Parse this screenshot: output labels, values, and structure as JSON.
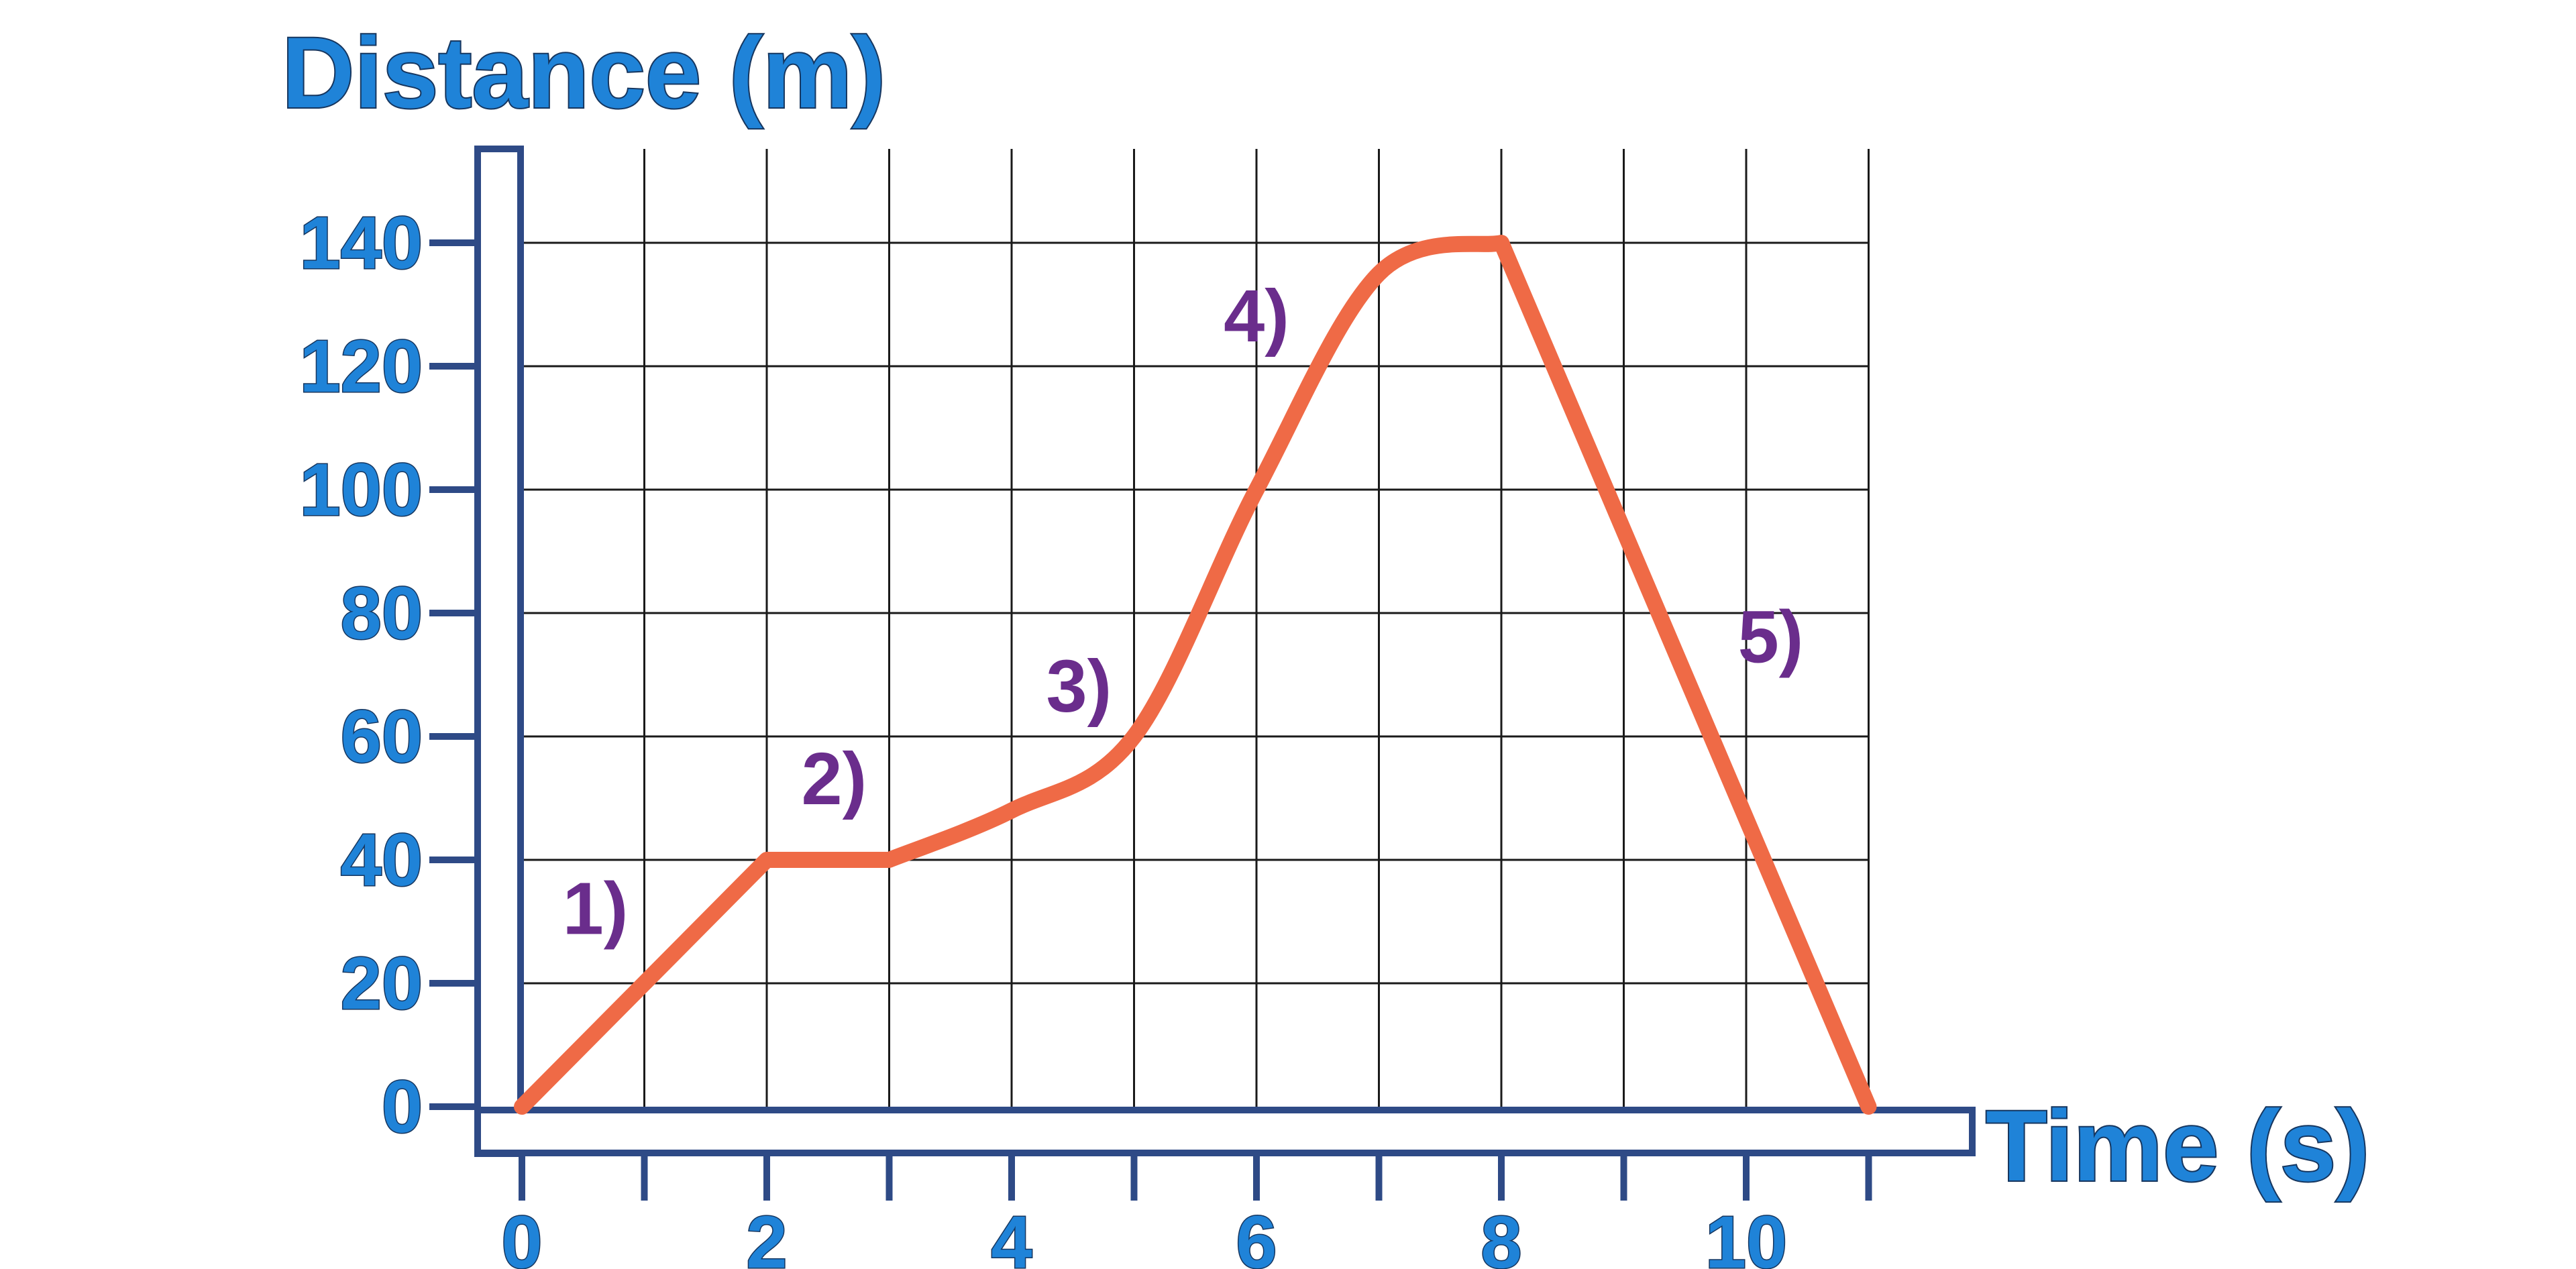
{
  "chart_data": {
    "type": "line",
    "title": "",
    "xlabel": "Time (s)",
    "ylabel": "Distance (m)",
    "xlim": [
      0,
      11
    ],
    "ylim": [
      0,
      150
    ],
    "grid": true,
    "legend": "none",
    "x_ticks": [
      "0",
      "2",
      "4",
      "6",
      "8",
      "10"
    ],
    "y_ticks": [
      "0",
      "20",
      "40",
      "60",
      "80",
      "100",
      "120",
      "140"
    ],
    "series": [
      {
        "color": "#ef6a46",
        "x": [
          0,
          2,
          3,
          4,
          5,
          6,
          7,
          8,
          11
        ],
        "y": [
          0,
          40,
          40,
          48,
          60,
          100,
          135,
          140,
          0
        ]
      }
    ],
    "annotations": [
      {
        "text": "1)",
        "x": 0.6,
        "y": 28
      },
      {
        "text": "2)",
        "x": 2.55,
        "y": 49
      },
      {
        "text": "3)",
        "x": 4.55,
        "y": 64
      },
      {
        "text": "4)",
        "x": 6.0,
        "y": 124
      },
      {
        "text": "5)",
        "x": 10.2,
        "y": 72
      }
    ],
    "colors": {
      "axis": "#2e4a86",
      "grid": "#1a1a1a",
      "label": "#1f83d8",
      "annotation": "#6a2d8c",
      "line": "#ef6a46"
    }
  }
}
